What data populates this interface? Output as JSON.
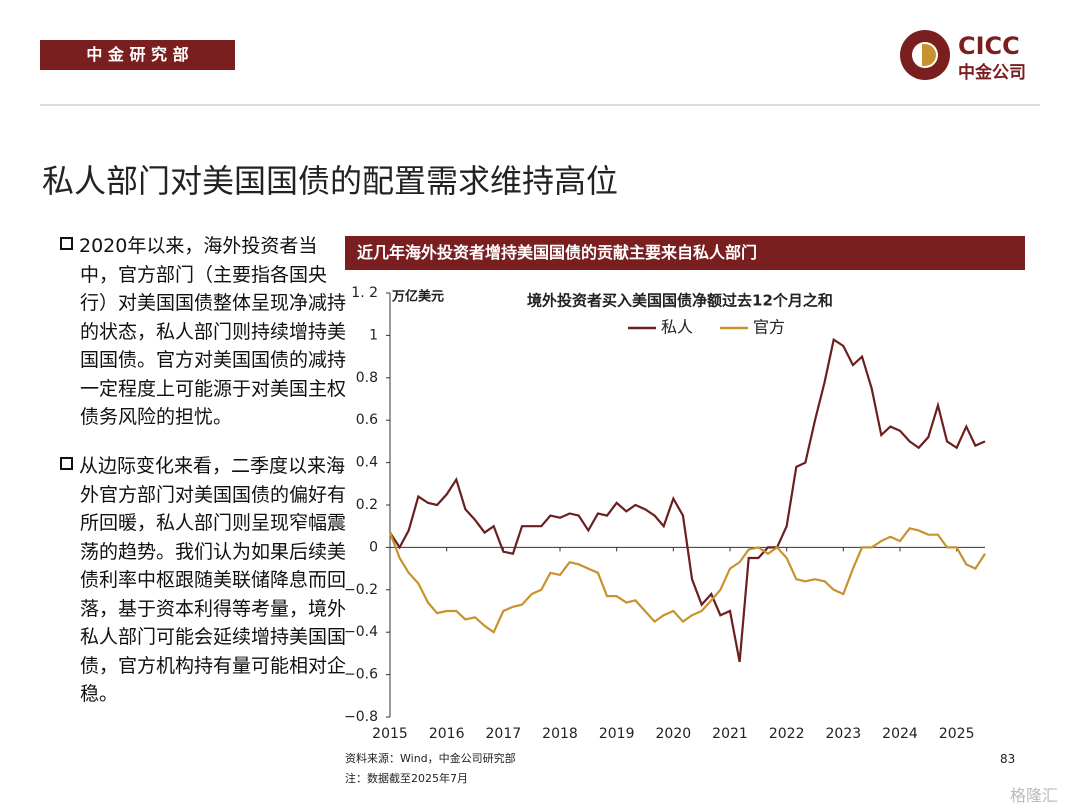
{
  "header": {
    "department": "中 金 研 究 部",
    "logo_en": "CICC",
    "logo_cn": "中金公司"
  },
  "title": "私人部门对美国国债的配置需求维持高位",
  "bullets": [
    "2020年以来，海外投资者当中，官方部门（主要指各国央行）对美国国债整体呈现净减持的状态，私人部门则持续增持美国国债。官方对美国国债的减持一定程度上可能源于对美国主权债务风险的担忧。",
    "从边际变化来看，二季度以来海外官方部门对美国国债的偏好有所回暖，私人部门则呈现窄幅震荡的趋势。我们认为如果后续美债利率中枢跟随美联储降息而回落，基于资本利得等考量，境外私人部门可能会延续增持美国国债，官方机构持有量可能相对企稳。"
  ],
  "chart_banner": "近几年海外投资者增持美国国债的贡献主要来自私人部门",
  "chart_data": {
    "type": "line",
    "title": "境外投资者买入美国国债净额过去12个月之和",
    "y_label": "万亿美元",
    "x": [
      2015.0,
      2015.17,
      2015.33,
      2015.5,
      2015.67,
      2015.83,
      2016.0,
      2016.17,
      2016.33,
      2016.5,
      2016.67,
      2016.83,
      2017.0,
      2017.17,
      2017.33,
      2017.5,
      2017.67,
      2017.83,
      2018.0,
      2018.17,
      2018.33,
      2018.5,
      2018.67,
      2018.83,
      2019.0,
      2019.17,
      2019.33,
      2019.5,
      2019.67,
      2019.83,
      2020.0,
      2020.17,
      2020.33,
      2020.5,
      2020.67,
      2020.83,
      2021.0,
      2021.17,
      2021.33,
      2021.5,
      2021.67,
      2021.83,
      2022.0,
      2022.17,
      2022.33,
      2022.5,
      2022.67,
      2022.83,
      2023.0,
      2023.17,
      2023.33,
      2023.5,
      2023.67,
      2023.83,
      2024.0,
      2024.17,
      2024.33,
      2024.5,
      2024.67,
      2024.83,
      2025.0,
      2025.17,
      2025.33,
      2025.5
    ],
    "series": [
      {
        "name": "私人",
        "color": "#6b1f1f",
        "values": [
          0.07,
          0.0,
          0.08,
          0.24,
          0.21,
          0.2,
          0.25,
          0.32,
          0.18,
          0.13,
          0.07,
          0.1,
          -0.02,
          -0.03,
          0.1,
          0.1,
          0.1,
          0.15,
          0.14,
          0.16,
          0.15,
          0.08,
          0.16,
          0.15,
          0.21,
          0.17,
          0.2,
          0.18,
          0.15,
          0.1,
          0.23,
          0.15,
          -0.15,
          -0.27,
          -0.22,
          -0.32,
          -0.3,
          -0.54,
          -0.05,
          -0.05,
          0.0,
          0.0,
          0.1,
          0.38,
          0.4,
          0.6,
          0.78,
          0.98,
          0.95,
          0.86,
          0.9,
          0.75,
          0.53,
          0.57,
          0.55,
          0.5,
          0.47,
          0.52,
          0.67,
          0.5,
          0.47,
          0.57,
          0.48,
          0.5
        ]
      },
      {
        "name": "官方",
        "color": "#c8922e",
        "values": [
          0.07,
          -0.05,
          -0.12,
          -0.17,
          -0.26,
          -0.31,
          -0.3,
          -0.3,
          -0.34,
          -0.33,
          -0.37,
          -0.4,
          -0.3,
          -0.28,
          -0.27,
          -0.22,
          -0.2,
          -0.12,
          -0.13,
          -0.07,
          -0.08,
          -0.1,
          -0.12,
          -0.23,
          -0.23,
          -0.26,
          -0.25,
          -0.3,
          -0.35,
          -0.32,
          -0.3,
          -0.35,
          -0.32,
          -0.3,
          -0.25,
          -0.2,
          -0.1,
          -0.07,
          -0.01,
          0.0,
          -0.03,
          0.0,
          -0.05,
          -0.15,
          -0.16,
          -0.15,
          -0.16,
          -0.2,
          -0.22,
          -0.1,
          0.0,
          0.0,
          0.03,
          0.05,
          0.03,
          0.09,
          0.08,
          0.06,
          0.06,
          0.0,
          0.0,
          -0.08,
          -0.1,
          -0.03
        ]
      }
    ],
    "xlim": [
      2015,
      2025.5
    ],
    "xticks": [
      2015,
      2016,
      2017,
      2018,
      2019,
      2020,
      2021,
      2022,
      2023,
      2024,
      2025
    ],
    "ylim": [
      -0.8,
      1.2
    ],
    "yticks": [
      {
        "value": -0.8,
        "label": "−0.8"
      },
      {
        "value": -0.6,
        "label": "−0.6"
      },
      {
        "value": -0.4,
        "label": "−0.4"
      },
      {
        "value": -0.2,
        "label": "−0.2"
      },
      0,
      0.2,
      0.4,
      0.6,
      0.8,
      1,
      {
        "value": 1.2,
        "label": "1. 2"
      }
    ],
    "grid": false,
    "legend": "top"
  },
  "source": "资料来源：Wind，中金公司研究部",
  "note": "注：数据截至2025年7月",
  "page_number": "83",
  "watermark": "格隆汇"
}
